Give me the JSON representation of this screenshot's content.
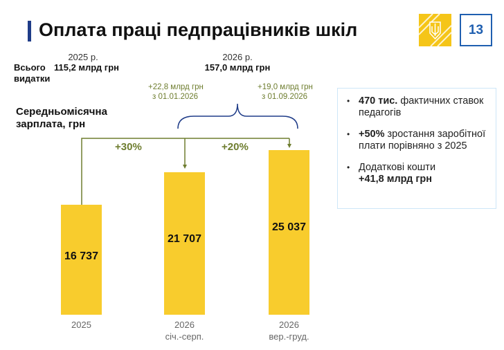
{
  "header": {
    "title": "Оплата праці педпрацівників шкіл",
    "page_number": "13",
    "logo": "Тризуб"
  },
  "totals": {
    "row_label": "Всього видатки",
    "y2025_label": "2025 р.",
    "y2025_value": "115,2 млрд грн",
    "y2026_label": "2026 р.",
    "y2026_value": "157,0 млрд грн"
  },
  "additions": [
    {
      "amount": "+22,8 млрд грн",
      "date": "з 01.01.2026"
    },
    {
      "amount": "+19,0 млрд грн",
      "date": "з 01.09.2026"
    }
  ],
  "growth": [
    "+30%",
    "+20%"
  ],
  "info_box": [
    {
      "bold": "470 тис.",
      "text": " фактичних ставок педагогів"
    },
    {
      "bold": "+50%",
      "text": " зростання заробітної плати порівняно з 2025"
    },
    {
      "text": "Додаткові кошти ",
      "bold_after": "+41,8 млрд грн"
    }
  ],
  "colors": {
    "bar": "#f8cc2d",
    "accent": "#1f3c88",
    "connector": "#6e7d2f",
    "brace": "#1f3c88"
  },
  "chart_data": {
    "type": "bar",
    "ylabel": "Середньомісячна зарплата, грн",
    "categories": [
      [
        "2025",
        ""
      ],
      [
        "2026",
        "січ.-серп."
      ],
      [
        "2026",
        "вер.-груд."
      ]
    ],
    "values": [
      16737,
      21707,
      25037
    ],
    "value_labels": [
      "16 737",
      "21 707",
      "25 037"
    ],
    "ylim": [
      0,
      26000
    ],
    "grid": false
  }
}
